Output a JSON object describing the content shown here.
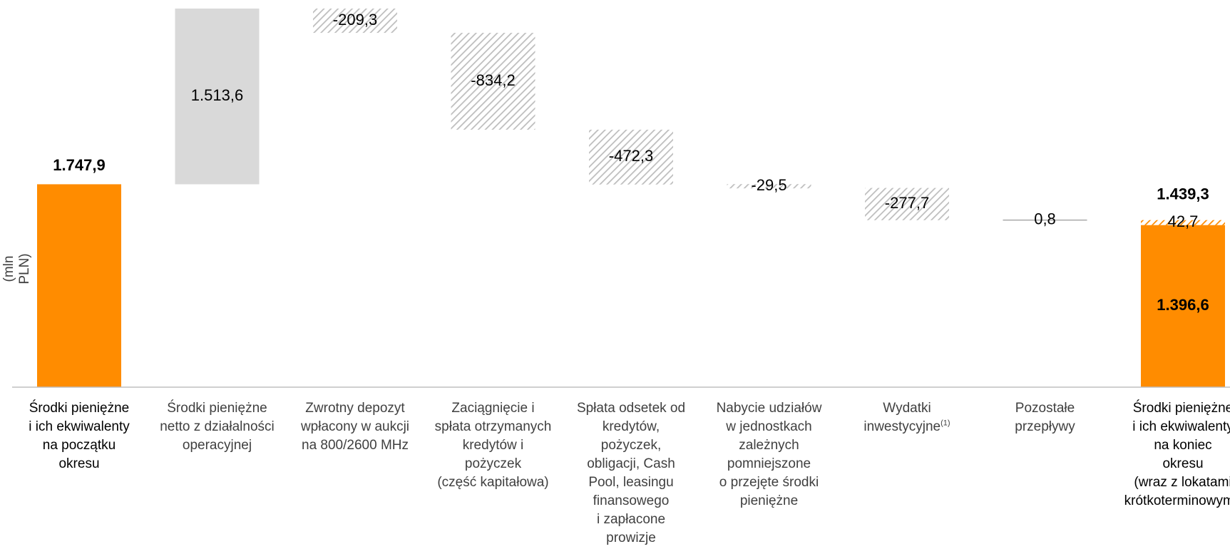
{
  "chart_data": {
    "type": "waterfall",
    "ylabel": "(mln PLN)",
    "categories": [
      {
        "lines": [
          "Środki pieniężne",
          "i ich ekwiwalenty",
          "na początku",
          "okresu"
        ]
      },
      {
        "lines": [
          "Środki pieniężne",
          "netto z działalności",
          "operacyjnej"
        ]
      },
      {
        "lines": [
          "Zwrotny depozyt",
          "wpłacony w aukcji",
          "na 800/2600 MHz"
        ]
      },
      {
        "lines": [
          "Zaciągnięcie i",
          "spłata otrzymanych",
          "kredytów i",
          "pożyczek",
          "(część kapitałowa)"
        ]
      },
      {
        "lines": [
          "Spłata odsetek od",
          "kredytów,",
          "pożyczek,",
          "obligacji, Cash",
          "Pool, leasingu",
          "finansowego",
          "i zapłacone",
          "prowizje"
        ]
      },
      {
        "lines": [
          "Nabycie udziałów",
          "w jednostkach",
          "zależnych",
          "pomniejszone",
          "o przejęte środki",
          "pieniężne"
        ]
      },
      {
        "lines": [
          "Wydatki",
          "inwestycyjne"
        ],
        "footnote": "(1)"
      },
      {
        "lines": [
          "Pozostałe",
          "przepływy"
        ]
      },
      {
        "lines": [
          "Środki pieniężne",
          "i ich ekwiwalenty",
          "na koniec",
          "okresu",
          "(wraz z lokatami",
          "krótkoterminowymi)"
        ]
      }
    ],
    "steps": [
      {
        "kind": "total",
        "value": 1747.9,
        "label": "1.747,9",
        "color": "#FF8C00"
      },
      {
        "kind": "delta",
        "value": 1513.6,
        "label": "1.513,6",
        "color": "#D9D9D9"
      },
      {
        "kind": "delta",
        "value": -209.3,
        "label": "-209,3",
        "pattern": "hatch"
      },
      {
        "kind": "delta",
        "value": -834.2,
        "label": "-834,2",
        "pattern": "hatch"
      },
      {
        "kind": "delta",
        "value": -472.3,
        "label": "-472,3",
        "pattern": "hatch"
      },
      {
        "kind": "delta",
        "value": -29.5,
        "label": "-29,5",
        "pattern": "hatch"
      },
      {
        "kind": "delta",
        "value": -277.7,
        "label": "-277,7",
        "pattern": "hatch"
      },
      {
        "kind": "delta",
        "value": 0.8,
        "label": "0,8",
        "color": "#D9D9D9"
      },
      {
        "kind": "end",
        "value": 1439.3,
        "label": "1.439,3",
        "segments": [
          {
            "value": 1396.6,
            "label": "1.396,6",
            "color": "#FF8C00"
          },
          {
            "value": 42.7,
            "label": "42,7",
            "pattern": "hatch-orange"
          }
        ]
      }
    ],
    "ylim": [
      0,
      3261.5
    ],
    "grid": false,
    "colors": {
      "orange": "#FF8C00",
      "grey": "#D9D9D9",
      "hatch": "#C0C0C0",
      "axis": "#BFBFBF"
    }
  }
}
